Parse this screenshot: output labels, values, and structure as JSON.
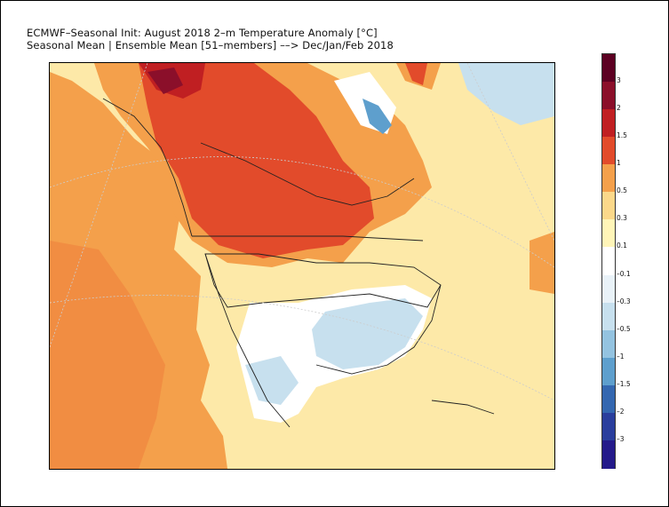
{
  "title": {
    "line1": "ECMWF–Seasonal Init: August 2018 2–m Temperature Anomaly [°C]",
    "line2": "Seasonal Mean | Ensemble Mean [51–members] ––> Dec/Jan/Feb 2018"
  },
  "colorbar": {
    "segments": [
      {
        "color": "#5c0022"
      },
      {
        "color": "#8b0f2a"
      },
      {
        "color": "#c01f22"
      },
      {
        "color": "#e24b2b"
      },
      {
        "color": "#f4a04b"
      },
      {
        "color": "#fbd88a"
      },
      {
        "color": "#fff5b8"
      },
      {
        "color": "#ffffff"
      },
      {
        "color": "#e9f2f8"
      },
      {
        "color": "#c7e0ee"
      },
      {
        "color": "#94c3e0"
      },
      {
        "color": "#5e9fcd"
      },
      {
        "color": "#3467b0"
      },
      {
        "color": "#2a3e9d"
      },
      {
        "color": "#241a8a"
      }
    ],
    "tick_labels": [
      "3",
      "2",
      "1.5",
      "1",
      "0.5",
      "0.3",
      "0.1",
      "–0.1",
      "–0.3",
      "–0.5",
      "–1",
      "–1.5",
      "–2",
      "–3"
    ]
  }
}
